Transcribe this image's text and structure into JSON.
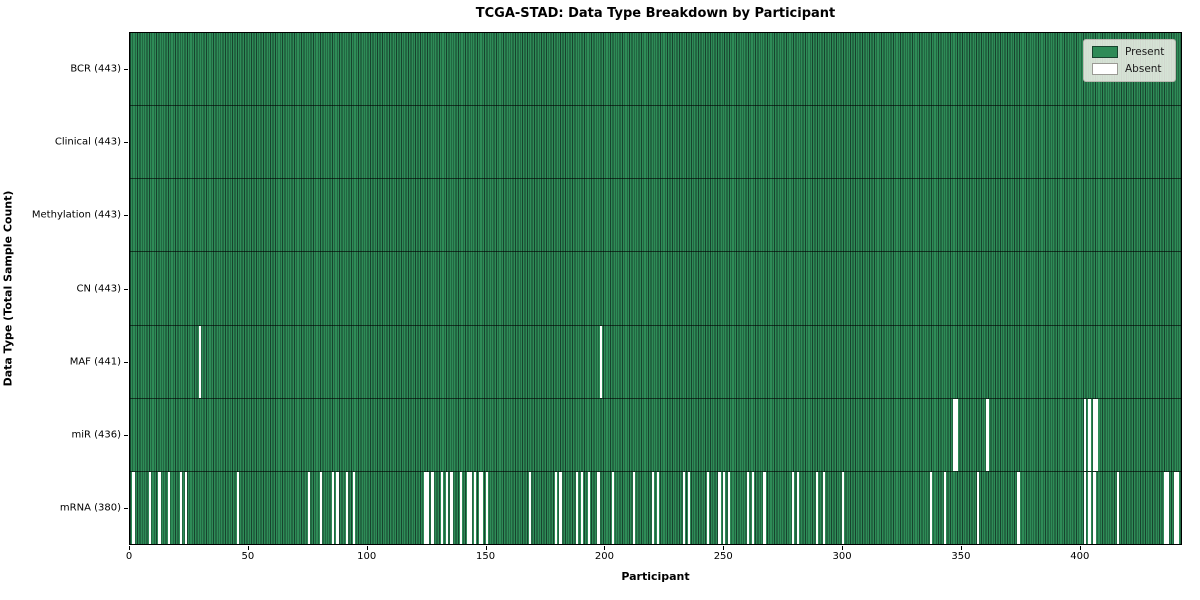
{
  "title": "TCGA-STAD: Data Type Breakdown by Participant",
  "legend": {
    "present_label": "Present",
    "absent_label": "Absent"
  },
  "colors": {
    "present": "#2e8b57",
    "present_edge": "#17432e",
    "absent": "#ffffff",
    "row_divider": "rgba(0,0,0,0.6)",
    "spine": "#000000",
    "legend_background": "rgba(242,242,235,0.85)"
  },
  "chart_data": {
    "type": "heatmap",
    "title": "TCGA-STAD: Data Type Breakdown by Participant",
    "xlabel": "Participant",
    "ylabel": "Data Type (Total Sample Count)",
    "legend": [
      "Present",
      "Absent"
    ],
    "legend_position": "upper right",
    "grid": false,
    "n_participants": 443,
    "xlim": [
      0,
      443
    ],
    "x_ticks": [
      0,
      50,
      100,
      150,
      200,
      250,
      300,
      350,
      400
    ],
    "rows": [
      {
        "name": "BCR",
        "label": "BCR (443)",
        "count": 443,
        "absent": []
      },
      {
        "name": "Clinical",
        "label": "Clinical (443)",
        "count": 443,
        "absent": []
      },
      {
        "name": "Methylation",
        "label": "Methylation (443)",
        "count": 443,
        "absent": []
      },
      {
        "name": "CN",
        "label": "CN (443)",
        "count": 443,
        "absent": []
      },
      {
        "name": "MAF",
        "label": "MAF (441)",
        "count": 441,
        "absent": [
          29,
          198
        ]
      },
      {
        "name": "miR",
        "label": "miR (436)",
        "count": 436,
        "absent": [
          347,
          348,
          361,
          402,
          404,
          406,
          407
        ]
      },
      {
        "name": "mRNA",
        "label": "mRNA (380)",
        "count": 380,
        "absent": [
          1,
          8,
          12,
          16,
          21,
          23,
          45,
          75,
          80,
          85,
          87,
          91,
          94,
          124,
          125,
          127,
          131,
          133,
          135,
          139,
          142,
          143,
          145,
          147,
          148,
          150,
          168,
          179,
          181,
          188,
          190,
          193,
          197,
          203,
          212,
          220,
          222,
          233,
          235,
          243,
          248,
          250,
          252,
          260,
          262,
          267,
          279,
          281,
          289,
          292,
          300,
          337,
          343,
          357,
          374,
          402,
          404,
          406,
          416,
          436,
          437,
          440,
          441
        ]
      }
    ]
  }
}
